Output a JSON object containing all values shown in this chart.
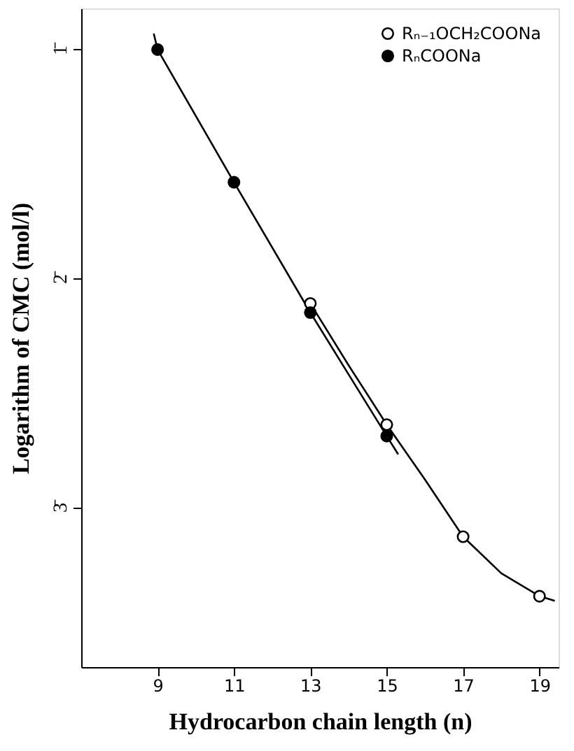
{
  "chart_data": {
    "type": "scatter",
    "xlabel": "Hydrocarbon chain length (n)",
    "ylabel": "Logarithm of CMC (mol/l)",
    "xlim": [
      7,
      19.5
    ],
    "xticks": [
      9,
      11,
      13,
      15,
      17,
      19
    ],
    "ylim": [
      -3.7,
      -0.82
    ],
    "yticks": [
      {
        "value": -1,
        "label": "1̄"
      },
      {
        "value": -2,
        "label": "2̄"
      },
      {
        "value": -3,
        "label": "3̄"
      }
    ],
    "legend": "top right",
    "grid": false,
    "marker": "circle",
    "series": [
      {
        "name": "Rₙ₋₁OCH₂COONa",
        "color": "#ffffff",
        "x": [
          13,
          15,
          17,
          19
        ],
        "values": [
          -2.11,
          -2.64,
          -3.13,
          -3.39
        ]
      },
      {
        "name": "RₙCOONa",
        "color": "#000000",
        "x": [
          9,
          11,
          13,
          15
        ],
        "values": [
          -1.0,
          -1.58,
          -2.15,
          -2.69
        ]
      },
      {
        "type": "line",
        "color": "#000000",
        "marker": "none",
        "line_style": "solid",
        "x": [
          8.9,
          9,
          11,
          13,
          15,
          15.3
        ],
        "values": [
          -0.93,
          -1.0,
          -1.58,
          -2.15,
          -2.69,
          -2.77
        ]
      },
      {
        "type": "line",
        "color": "#000000",
        "marker": "none",
        "line_style": "solid",
        "x": [
          13,
          14,
          15,
          16,
          17,
          18,
          19,
          19.4
        ],
        "values": [
          -2.11,
          -2.38,
          -2.64,
          -2.88,
          -3.13,
          -3.29,
          -3.39,
          -3.41
        ]
      }
    ]
  }
}
